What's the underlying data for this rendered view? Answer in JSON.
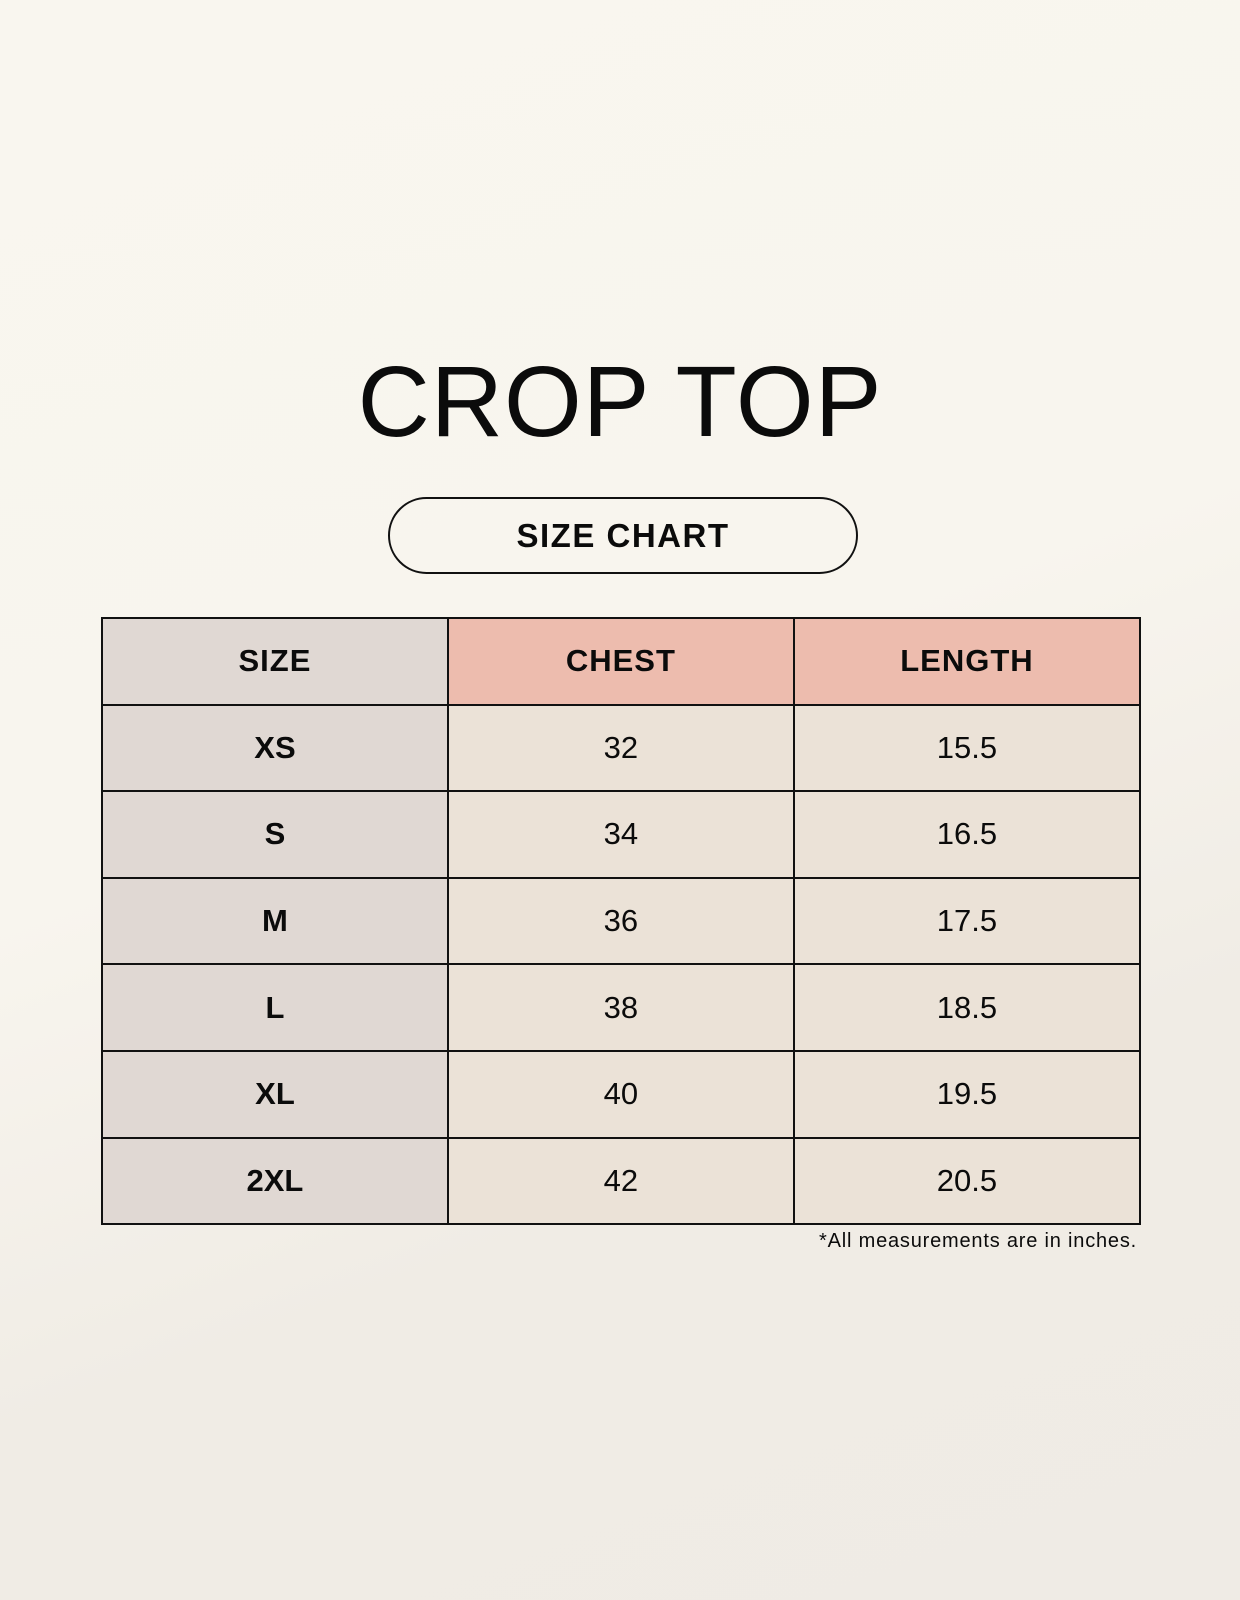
{
  "title": "CROP TOP",
  "subtitle": "SIZE CHART",
  "table": {
    "headers": [
      "SIZE",
      "CHEST",
      "LENGTH"
    ],
    "rows": [
      [
        "XS",
        "32",
        "15.5"
      ],
      [
        "S",
        "34",
        "16.5"
      ],
      [
        "M",
        "36",
        "17.5"
      ],
      [
        "L",
        "38",
        "18.5"
      ],
      [
        "XL",
        "40",
        "19.5"
      ],
      [
        "2XL",
        "42",
        "20.5"
      ]
    ]
  },
  "footnote": "*All measurements are in inches.",
  "colors": {
    "size_column": "#e0d8d3",
    "header_accent": "#edbcae",
    "cell": "#ebe2d7"
  }
}
